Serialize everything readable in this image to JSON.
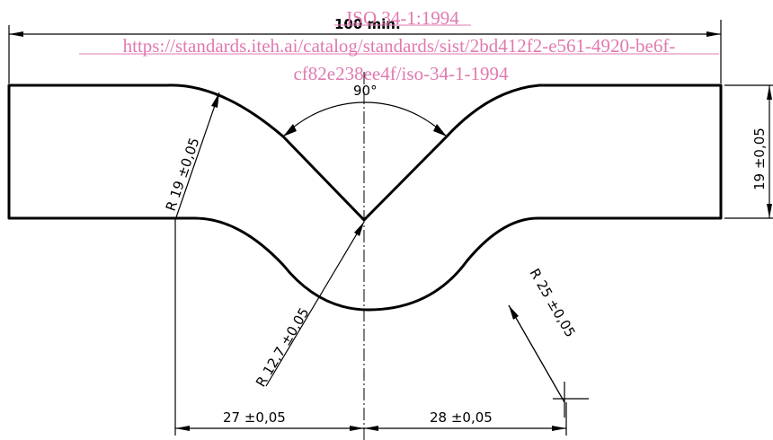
{
  "watermark": {
    "line1": "ISO 34-1:1994",
    "line2": "https://standards.iteh.ai/catalog/standards/sist/2bd412f2-e561-4920-be6f-",
    "line3": "cf82e238ee4f/iso-34-1-1994",
    "color": "#e07ab0"
  },
  "dimensions": {
    "overall_length": "100 min.",
    "angle": "90°",
    "height": "19 ±0,05",
    "radius_upper": "R 19 ±0,05",
    "radius_notch": "R 12,7 ±0,05",
    "radius_lower": "R 25 ±0,05",
    "left_offset": "27 ±0,05",
    "right_offset": "28 ±0,05"
  }
}
